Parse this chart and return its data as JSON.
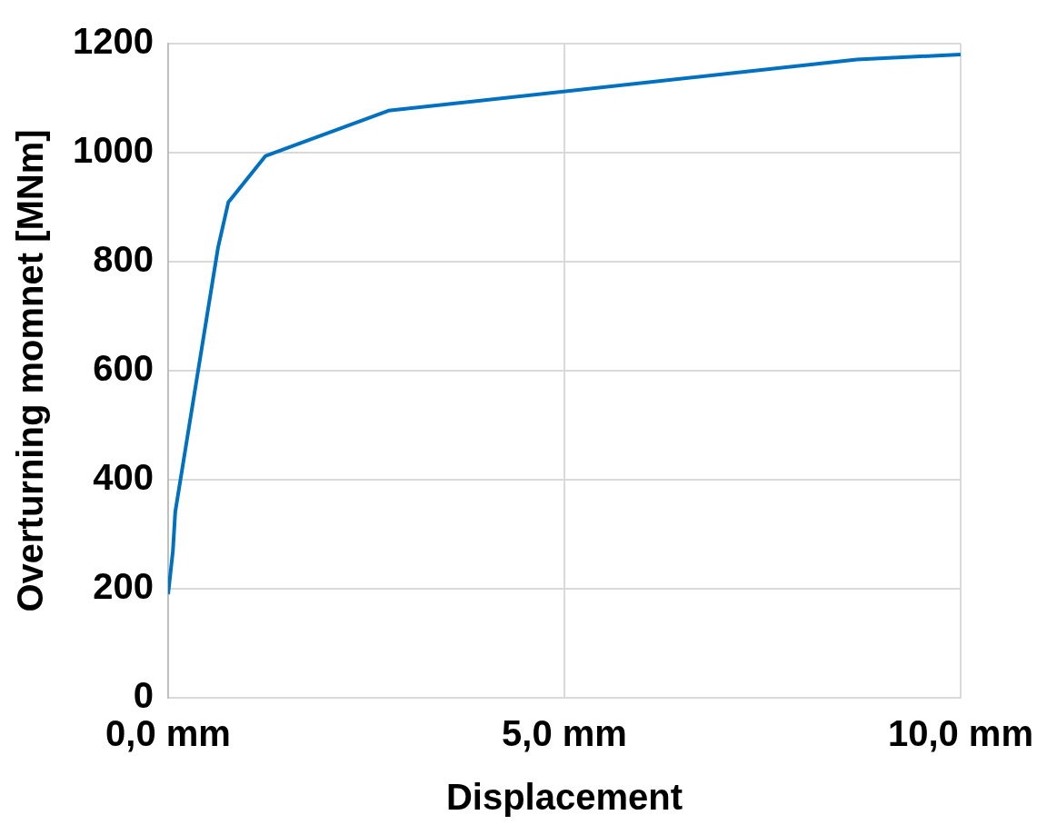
{
  "chart_data": {
    "type": "line",
    "xlabel": "Displacement",
    "ylabel": "Overturning momnet [MNm]",
    "x": [
      0,
      0.06,
      0.09,
      0.63,
      0.76,
      1.23,
      2.78,
      8.69,
      10
    ],
    "series": [
      {
        "color": "#0070c0",
        "values": [
          190,
          269,
          341,
          826,
          909,
          994,
          1077,
          1171,
          1180
        ]
      }
    ],
    "xlim": [
      0,
      10
    ],
    "xticks": [
      {
        "value": 0,
        "label": "0,0 mm"
      },
      {
        "value": 5,
        "label": "5,0 mm"
      },
      {
        "value": 10,
        "label": "10,0 mm"
      }
    ],
    "ylim": [
      0,
      1200
    ],
    "yticks": [
      0,
      200,
      400,
      600,
      800,
      1000,
      1200
    ],
    "grid": true,
    "legend": false,
    "marker": "none",
    "line_style": "solid"
  }
}
